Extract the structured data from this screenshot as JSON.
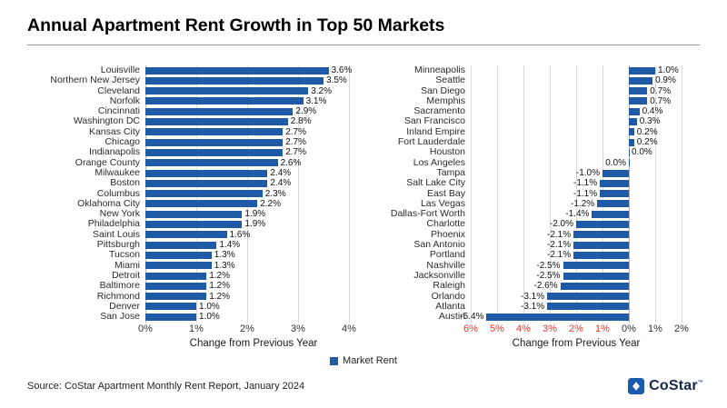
{
  "title": "Annual Apartment Rent Growth in Top 50 Markets",
  "source": "Source: CoStar Apartment Monthly Rent Report, January 2024",
  "legend": {
    "label": "Market Rent"
  },
  "logo": {
    "text": "CoStar",
    "trademark": "™"
  },
  "colors": {
    "bar": "#1f5aa7",
    "negative_tick": "#e23a2f",
    "grid": "#dcdcdc",
    "logo_blue": "#1b5bab",
    "logo_text": "#15284b"
  },
  "chart_data": [
    {
      "type": "bar",
      "orientation": "horizontal",
      "series_name": "Market Rent",
      "xlabel": "Change from Previous Year",
      "xlim": [
        0,
        4.25
      ],
      "ticks": [
        0,
        1,
        2,
        3,
        4
      ],
      "tick_labels": [
        "0%",
        "1%",
        "2%",
        "3%",
        "4%"
      ],
      "categories": [
        "Louisville",
        "Northern New Jersey",
        "Cleveland",
        "Norfolk",
        "Cincinnati",
        "Washington DC",
        "Kansas City",
        "Chicago",
        "Indianapolis",
        "Orange County",
        "Milwaukee",
        "Boston",
        "Columbus",
        "Oklahoma City",
        "New York",
        "Philadelphia",
        "Saint Louis",
        "Pittsburgh",
        "Tucson",
        "Miami",
        "Detroit",
        "Baltimore",
        "Richmond",
        "Denver",
        "San Jose"
      ],
      "values": [
        3.6,
        3.5,
        3.2,
        3.1,
        2.9,
        2.8,
        2.7,
        2.7,
        2.7,
        2.6,
        2.4,
        2.4,
        2.3,
        2.2,
        1.9,
        1.9,
        1.6,
        1.4,
        1.3,
        1.3,
        1.2,
        1.2,
        1.2,
        1.0,
        1.0
      ],
      "value_labels": [
        "3.6%",
        "3.5%",
        "3.2%",
        "3.1%",
        "2.9%",
        "2.8%",
        "2.7%",
        "2.7%",
        "2.7%",
        "2.6%",
        "2.4%",
        "2.4%",
        "2.3%",
        "2.2%",
        "1.9%",
        "1.9%",
        "1.6%",
        "1.4%",
        "1.3%",
        "1.3%",
        "1.2%",
        "1.2%",
        "1.2%",
        "1.0%",
        "1.0%"
      ]
    },
    {
      "type": "bar",
      "orientation": "horizontal",
      "series_name": "Market Rent",
      "xlabel": "Change from Previous Year",
      "xlim": [
        -6,
        2
      ],
      "ticks": [
        -6,
        -5,
        -4,
        -3,
        -2,
        -1,
        0,
        1,
        2
      ],
      "tick_labels": [
        "6%",
        "5%",
        "4%",
        "3%",
        "2%",
        "1%",
        "0%",
        "1%",
        "2%"
      ],
      "negative_ticks_red": true,
      "categories": [
        "Minneapolis",
        "Seattle",
        "San Diego",
        "Memphis",
        "Sacramento",
        "San Francisco",
        "Inland Empire",
        "Fort Lauderdale",
        "Houston",
        "Los Angeles",
        "Tampa",
        "Salt Lake City",
        "East Bay",
        "Las Vegas",
        "Dallas-Fort Worth",
        "Charlotte",
        "Phoenix",
        "San Antonio",
        "Portland",
        "Nashville",
        "Jacksonville",
        "Raleigh",
        "Orlando",
        "Atlanta",
        "Austin"
      ],
      "values": [
        1.0,
        0.9,
        0.7,
        0.7,
        0.4,
        0.3,
        0.2,
        0.2,
        0.0,
        0.0,
        -1.0,
        -1.1,
        -1.1,
        -1.2,
        -1.4,
        -2.0,
        -2.1,
        -2.1,
        -2.1,
        -2.5,
        -2.5,
        -2.6,
        -3.1,
        -3.1,
        -5.4
      ],
      "value_labels": [
        "1.0%",
        "0.9%",
        "0.7%",
        "0.7%",
        "0.4%",
        "0.3%",
        "0.2%",
        "0.2%",
        "0.0%",
        "0.0%",
        "-1.0%",
        "-1.1%",
        "-1.1%",
        "-1.2%",
        "-1.4%",
        "-2.0%",
        "-2.1%",
        "-2.1%",
        "-2.1%",
        "-2.5%",
        "-2.5%",
        "-2.6%",
        "-3.1%",
        "-3.1%",
        "-5.4%"
      ],
      "label_sides": {
        "9": "left"
      }
    }
  ]
}
